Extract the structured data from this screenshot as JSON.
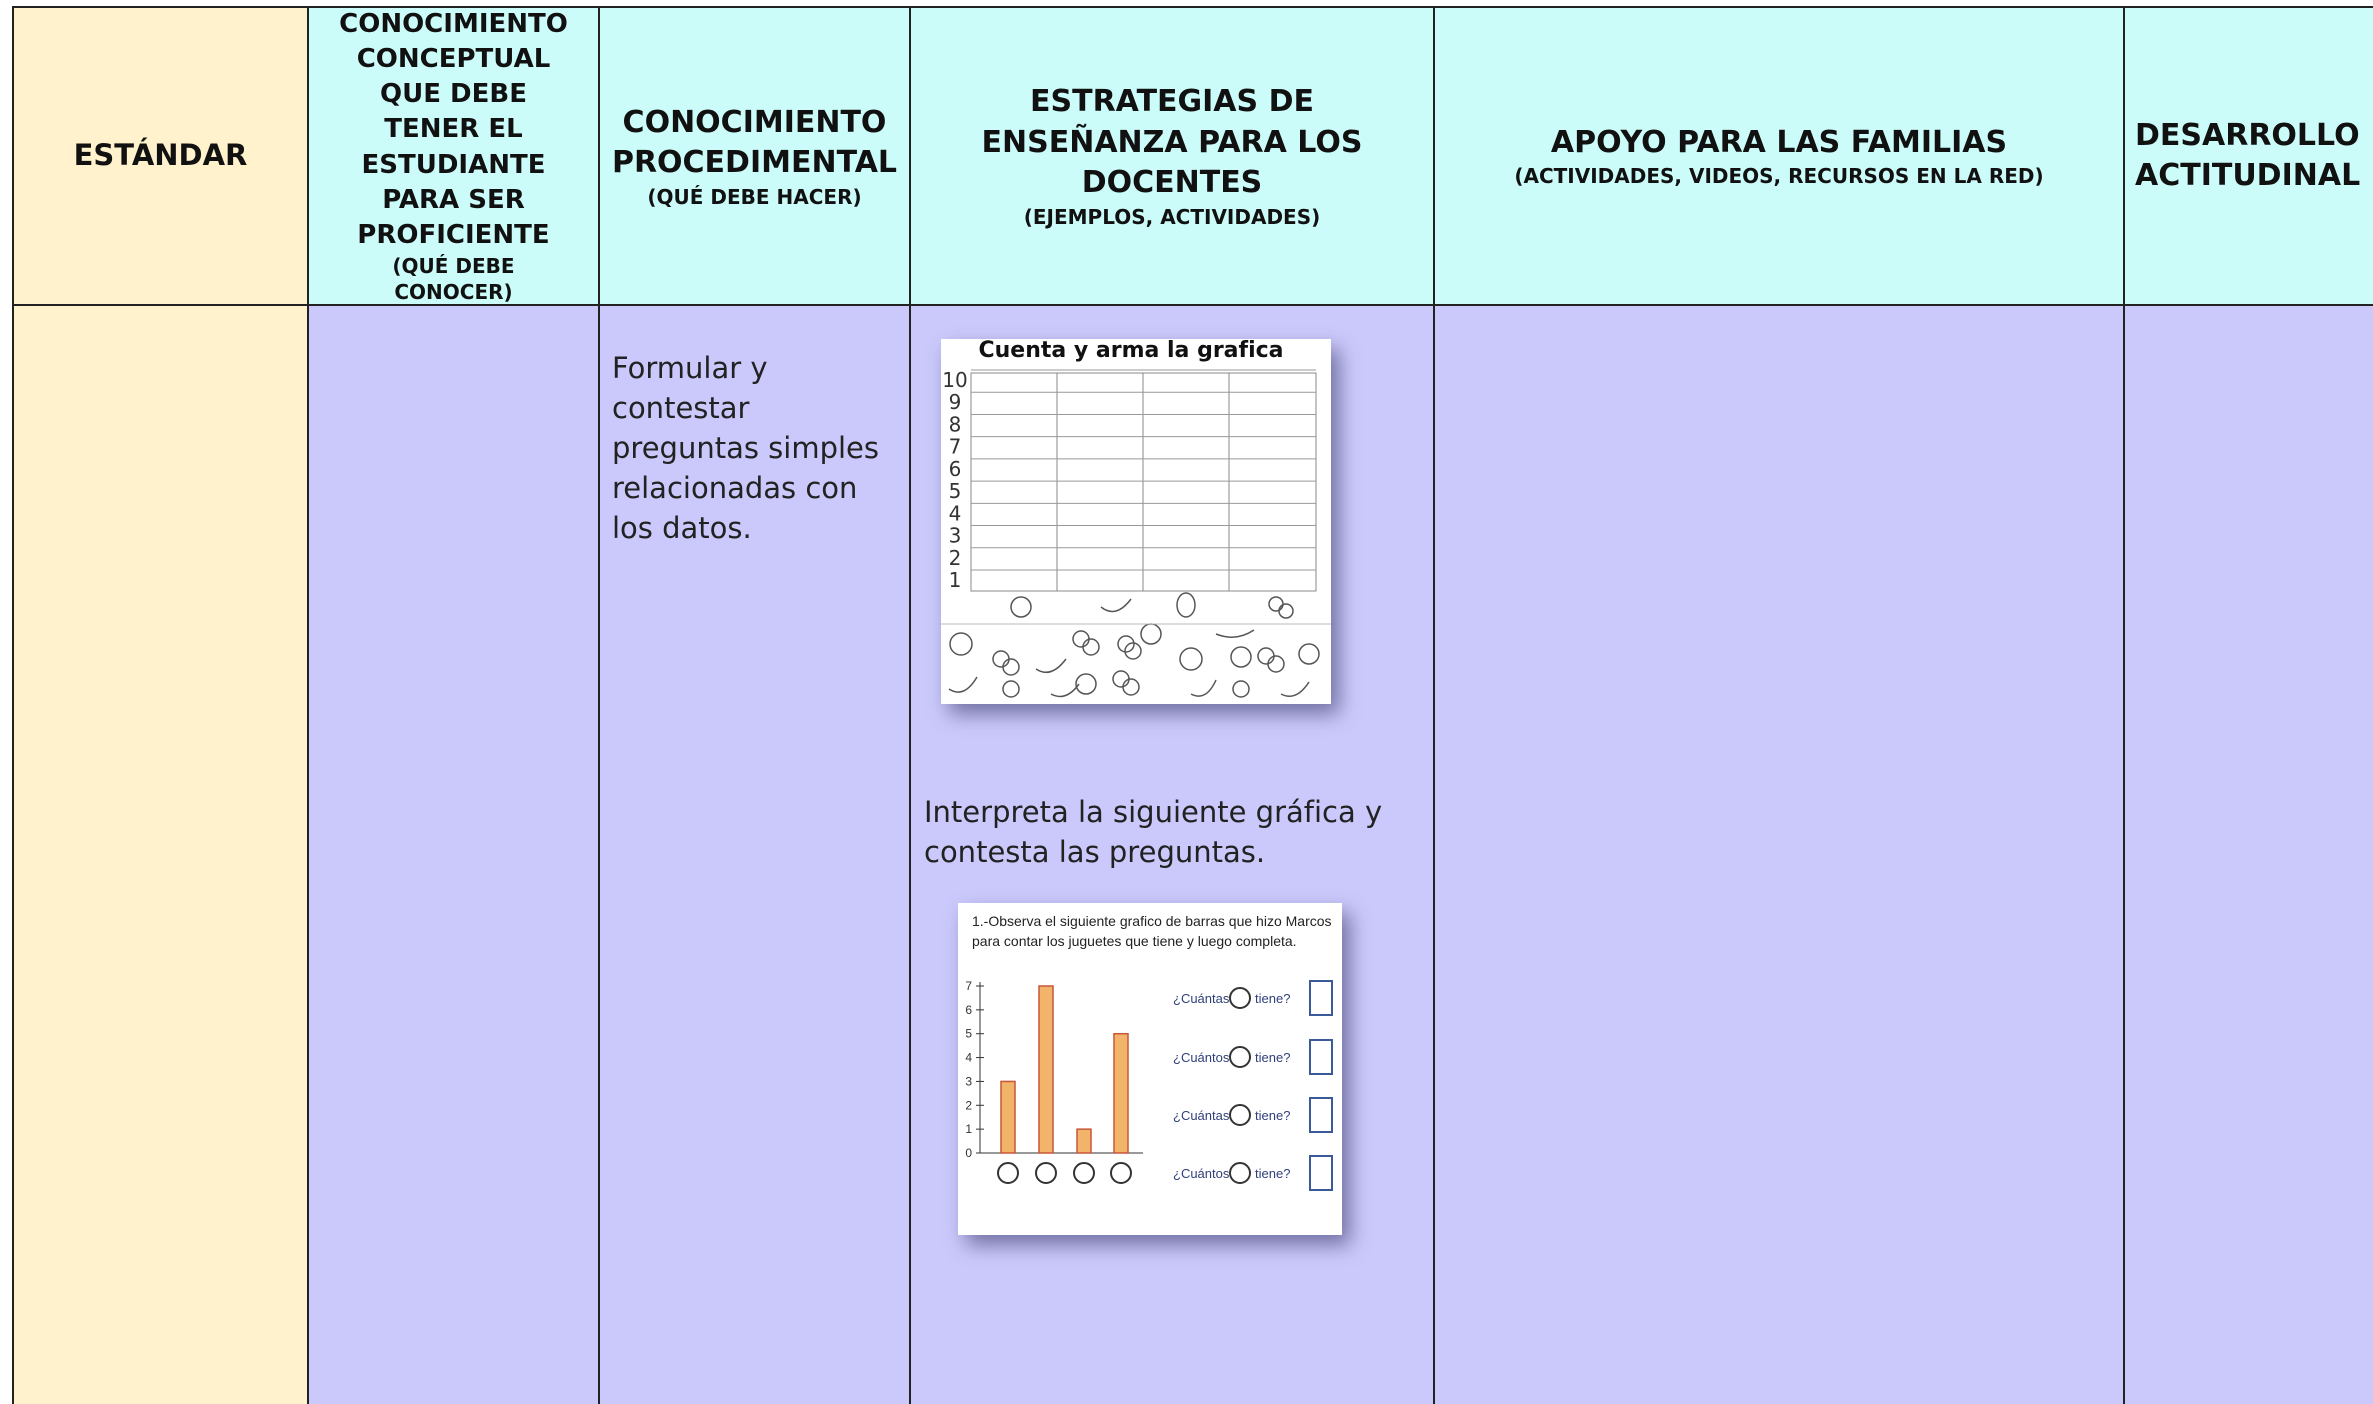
{
  "header": {
    "columns": [
      {
        "title": "ESTÁNDAR"
      },
      {
        "title": "CONOCIMIENTO CONCEPTUAL QUE DEBE TENER EL ESTUDIANTE PARA SER PROFICIENTE",
        "subtitle": "(QUÉ DEBE CONOCER)"
      },
      {
        "title": "CONOCIMIENTO PROCEDIMENTAL",
        "subtitle": "(QUÉ DEBE HACER)"
      },
      {
        "title": "ESTRATEGIAS DE ENSEÑANZA PARA LOS DOCENTES",
        "subtitle": "(EJEMPLOS, ACTIVIDADES)"
      },
      {
        "title": "APOYO PARA LAS FAMILIAS",
        "subtitle": "(ACTIVIDADES, VIDEOS, RECURSOS EN LA RED)"
      },
      {
        "title": "DESARROLLO ACTITUDINAL"
      }
    ]
  },
  "body": {
    "procedural": "Formular y contestar preguntas simples relacionadas con los datos.",
    "strategy_text": "Interpreta la siguiente gráfica y contesta las preguntas."
  },
  "worksheet1": {
    "title": "Cuenta y arma la grafica",
    "yticks": [
      1,
      2,
      3,
      4,
      5,
      6,
      7,
      8,
      9,
      10
    ]
  },
  "worksheet2": {
    "instruction": "1.-Observa el siguiente grafico de barras que hizo Marcos para contar los juguetes que tiene y luego completa.",
    "yticks": [
      0,
      1,
      2,
      3,
      4,
      5,
      6,
      7
    ],
    "values": [
      3,
      7,
      1,
      5
    ],
    "questions": [
      {
        "before": "¿Cuántas",
        "after": "tiene?"
      },
      {
        "before": "¿Cuántos",
        "after": "tiene?"
      },
      {
        "before": "¿Cuántas",
        "after": "tiene?"
      },
      {
        "before": "¿Cuántos",
        "after": "tiene?"
      }
    ]
  }
}
